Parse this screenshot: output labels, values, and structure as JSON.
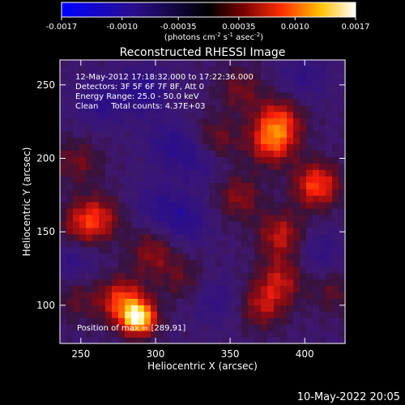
{
  "chart_data": {
    "type": "heatmap",
    "title": "Reconstructed RHESSI Image",
    "xlabel": "Heliocentric X (arcsec)",
    "ylabel": "Heliocentric Y (arcsec)",
    "xlim": [
      236,
      427
    ],
    "ylim": [
      74,
      267
    ],
    "xticks": [
      250,
      300,
      350,
      400
    ],
    "yticks": [
      100,
      150,
      200,
      250
    ],
    "grid": false,
    "colorbar": {
      "range": [
        -0.0017,
        0.0017
      ],
      "ticks": [
        "-0.0017",
        "-0.0010",
        "-0.00035",
        "0.00035",
        "0.0010",
        "0.0017"
      ],
      "unit_label": "(photons cm",
      "unit_sup1": "-2",
      "unit_mid": " s",
      "unit_sup2": "-1",
      "unit_mid2": " asec",
      "unit_sup3": "-2",
      "unit_end": ")"
    },
    "annotations": [
      "12-May-2012 17:18:32.000 to 17:22:36.000",
      "Detectors: 3F 5F 6F 7F 8F, Att 0",
      "Energy Range: 25.0 - 50.0 keV",
      "Clean     Total counts: 4.37E+03"
    ],
    "position_label": "Position of max = [289,91]",
    "peak": {
      "x": 289,
      "y": 91,
      "value": 0.0017
    },
    "approx_blobs": [
      {
        "x": 289,
        "y": 91,
        "value": 0.0017
      },
      {
        "x": 278,
        "y": 103,
        "value": 0.0011
      },
      {
        "x": 250,
        "y": 155,
        "value": 0.0006
      },
      {
        "x": 262,
        "y": 160,
        "value": 0.0007
      },
      {
        "x": 298,
        "y": 136,
        "value": 0.0006
      },
      {
        "x": 248,
        "y": 198,
        "value": 0.0005
      },
      {
        "x": 340,
        "y": 212,
        "value": 0.0006
      },
      {
        "x": 356,
        "y": 174,
        "value": 0.0006
      },
      {
        "x": 383,
        "y": 226,
        "value": 0.0009
      },
      {
        "x": 378,
        "y": 211,
        "value": 0.001
      },
      {
        "x": 408,
        "y": 182,
        "value": 0.0011
      },
      {
        "x": 384,
        "y": 148,
        "value": 0.0008
      },
      {
        "x": 384,
        "y": 118,
        "value": 0.0007
      },
      {
        "x": 372,
        "y": 100,
        "value": 0.0007
      },
      {
        "x": 318,
        "y": 118,
        "value": 0.0004
      },
      {
        "x": 357,
        "y": 247,
        "value": 0.0005
      },
      {
        "x": 247,
        "y": 105,
        "value": 0.0004
      },
      {
        "x": 420,
        "y": 110,
        "value": 0.0004
      },
      {
        "x": 264,
        "y": 238,
        "value": -0.0005
      },
      {
        "x": 292,
        "y": 246,
        "value": -0.0006
      },
      {
        "x": 320,
        "y": 158,
        "value": -0.0006
      },
      {
        "x": 330,
        "y": 200,
        "value": -0.0005
      },
      {
        "x": 310,
        "y": 210,
        "value": -0.0005
      },
      {
        "x": 400,
        "y": 256,
        "value": -0.0004
      },
      {
        "x": 244,
        "y": 130,
        "value": -0.0004
      },
      {
        "x": 340,
        "y": 104,
        "value": -0.0004
      },
      {
        "x": 410,
        "y": 136,
        "value": -0.0004
      },
      {
        "x": 301,
        "y": 170,
        "value": -0.0004
      }
    ]
  },
  "footer": {
    "date": "10-May-2022 20:05"
  }
}
